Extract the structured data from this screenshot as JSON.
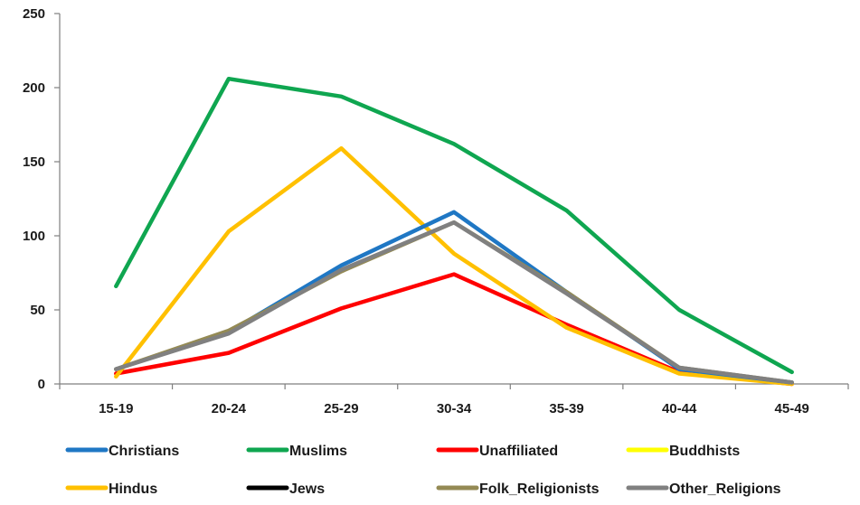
{
  "chart_data": {
    "type": "line",
    "title": "",
    "xlabel": "",
    "ylabel": "",
    "categories": [
      "15-19",
      "20-24",
      "25-29",
      "30-34",
      "35-39",
      "40-44",
      "45-49"
    ],
    "ylim": [
      0,
      250
    ],
    "yticks": [
      0,
      50,
      100,
      150,
      200,
      250
    ],
    "grid": false,
    "legend_position": "bottom",
    "series": [
      {
        "name": "Christians",
        "color": "#1f77c4",
        "values": [
          10,
          35,
          80,
          116,
          62,
          10,
          1
        ]
      },
      {
        "name": "Muslims",
        "color": "#0fa650",
        "values": [
          66,
          206,
          194,
          162,
          117,
          50,
          8
        ]
      },
      {
        "name": "Unaffiliated",
        "color": "#ff0000",
        "values": [
          7,
          21,
          51,
          74,
          40,
          8,
          0
        ]
      },
      {
        "name": "Buddhists",
        "color": "#ffff00",
        "values": [
          null,
          null,
          null,
          null,
          null,
          null,
          null
        ]
      },
      {
        "name": "Hindus",
        "color": "#ffc000",
        "values": [
          5,
          103,
          159,
          88,
          38,
          7,
          0
        ]
      },
      {
        "name": "Jews",
        "color": "#000000",
        "values": [
          null,
          null,
          null,
          null,
          null,
          null,
          null
        ]
      },
      {
        "name": "Folk_Religionists",
        "color": "#948a54",
        "values": [
          10,
          36,
          76,
          109,
          62,
          11,
          1
        ]
      },
      {
        "name": "Other_Religions",
        "color": "#808080",
        "values": [
          10,
          34,
          77,
          109,
          61,
          11,
          1
        ]
      }
    ]
  }
}
